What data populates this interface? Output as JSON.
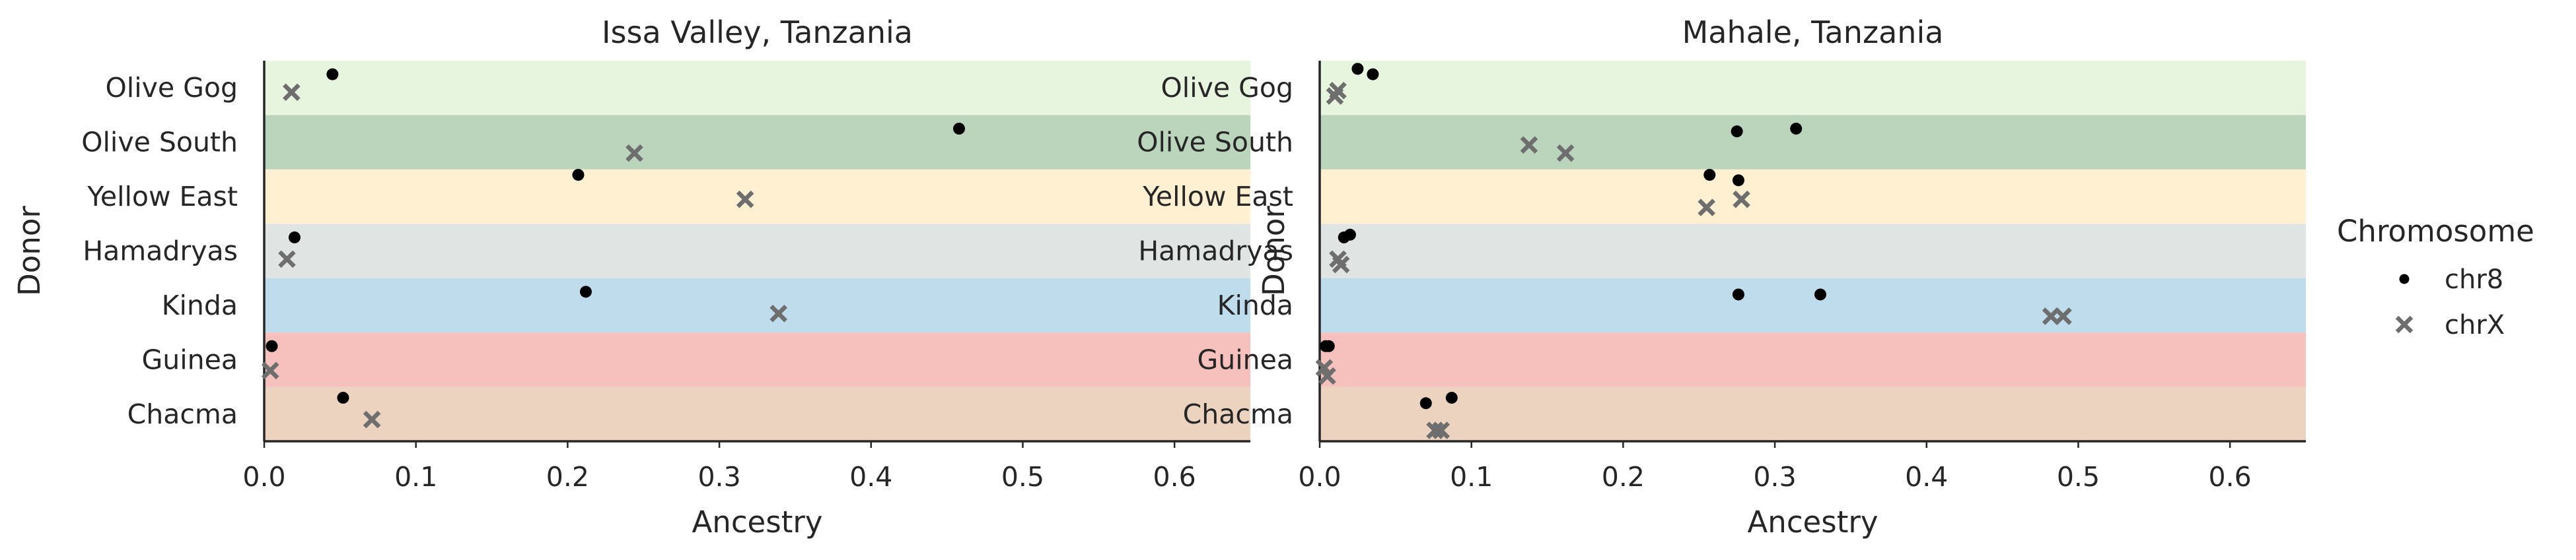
{
  "chart_data": [
    {
      "type": "scatter",
      "title": "Issa Valley, Tanzania",
      "xlabel": "Ancestry",
      "ylabel": "Donor",
      "xlim": [
        0,
        0.65
      ],
      "xticks": [
        "0.0",
        "0.1",
        "0.2",
        "0.3",
        "0.4",
        "0.5",
        "0.6"
      ],
      "categories": [
        "Olive Gog",
        "Olive South",
        "Yellow East",
        "Hamadryas",
        "Kinda",
        "Guinea",
        "Chacma"
      ],
      "band_colors": [
        "#e8f5de",
        "#bbd4bc",
        "#fff0d2",
        "#e0e5e4",
        "#bedcec",
        "#f6c1bc",
        "#ebd3c0"
      ],
      "series": [
        {
          "name": "chr8",
          "marker": "dot",
          "color": "#000000",
          "points": [
            {
              "donor": "Olive Gog",
              "x": 0.045,
              "offset": -0.25
            },
            {
              "donor": "Olive South",
              "x": 0.458,
              "offset": -0.25
            },
            {
              "donor": "Yellow East",
              "x": 0.207,
              "offset": -0.4
            },
            {
              "donor": "Hamadryas",
              "x": 0.02,
              "offset": -0.25
            },
            {
              "donor": "Kinda",
              "x": 0.212,
              "offset": -0.25
            },
            {
              "donor": "Guinea",
              "x": 0.005,
              "offset": -0.25
            },
            {
              "donor": "Chacma",
              "x": 0.052,
              "offset": -0.3
            }
          ]
        },
        {
          "name": "chrX",
          "marker": "x",
          "color": "#6e6e6e",
          "points": [
            {
              "donor": "Olive Gog",
              "x": 0.018,
              "offset": 0.08
            },
            {
              "donor": "Olive South",
              "x": 0.244,
              "offset": 0.2
            },
            {
              "donor": "Yellow East",
              "x": 0.317,
              "offset": 0.05
            },
            {
              "donor": "Hamadryas",
              "x": 0.015,
              "offset": 0.15
            },
            {
              "donor": "Kinda",
              "x": 0.339,
              "offset": 0.15
            },
            {
              "donor": "Guinea",
              "x": 0.004,
              "offset": 0.2
            },
            {
              "donor": "Chacma",
              "x": 0.071,
              "offset": 0.1
            }
          ]
        }
      ]
    },
    {
      "type": "scatter",
      "title": "Mahale, Tanzania",
      "xlabel": "Ancestry",
      "ylabel": "Donor",
      "xlim": [
        0,
        0.65
      ],
      "xticks": [
        "0.0",
        "0.1",
        "0.2",
        "0.3",
        "0.4",
        "0.5",
        "0.6"
      ],
      "categories": [
        "Olive Gog",
        "Olive South",
        "Yellow East",
        "Hamadryas",
        "Kinda",
        "Guinea",
        "Chacma"
      ],
      "band_colors": [
        "#e8f5de",
        "#bbd4bc",
        "#fff0d2",
        "#e0e5e4",
        "#bedcec",
        "#f6c1bc",
        "#ebd3c0"
      ],
      "series": [
        {
          "name": "chr8",
          "marker": "dot",
          "color": "#000000",
          "points": [
            {
              "donor": "Olive Gog",
              "x": 0.025,
              "offset": -0.35
            },
            {
              "donor": "Olive Gog",
              "x": 0.035,
              "offset": -0.25
            },
            {
              "donor": "Olive South",
              "x": 0.275,
              "offset": -0.2
            },
            {
              "donor": "Olive South",
              "x": 0.314,
              "offset": -0.25
            },
            {
              "donor": "Yellow East",
              "x": 0.257,
              "offset": -0.4
            },
            {
              "donor": "Yellow East",
              "x": 0.276,
              "offset": -0.3
            },
            {
              "donor": "Hamadryas",
              "x": 0.016,
              "offset": -0.25
            },
            {
              "donor": "Hamadryas",
              "x": 0.02,
              "offset": -0.3
            },
            {
              "donor": "Kinda",
              "x": 0.276,
              "offset": -0.2
            },
            {
              "donor": "Kinda",
              "x": 0.33,
              "offset": -0.2
            },
            {
              "donor": "Guinea",
              "x": 0.004,
              "offset": -0.25
            },
            {
              "donor": "Guinea",
              "x": 0.006,
              "offset": -0.25
            },
            {
              "donor": "Chacma",
              "x": 0.07,
              "offset": -0.2
            },
            {
              "donor": "Chacma",
              "x": 0.087,
              "offset": -0.3
            }
          ]
        },
        {
          "name": "chrX",
          "marker": "x",
          "color": "#6e6e6e",
          "points": [
            {
              "donor": "Olive Gog",
              "x": 0.01,
              "offset": 0.15
            },
            {
              "donor": "Olive Gog",
              "x": 0.012,
              "offset": 0.05
            },
            {
              "donor": "Olive South",
              "x": 0.138,
              "offset": 0.05
            },
            {
              "donor": "Olive South",
              "x": 0.162,
              "offset": 0.2
            },
            {
              "donor": "Yellow East",
              "x": 0.255,
              "offset": 0.2
            },
            {
              "donor": "Yellow East",
              "x": 0.278,
              "offset": 0.05
            },
            {
              "donor": "Hamadryas",
              "x": 0.012,
              "offset": 0.15
            },
            {
              "donor": "Hamadryas",
              "x": 0.014,
              "offset": 0.25
            },
            {
              "donor": "Kinda",
              "x": 0.482,
              "offset": 0.2
            },
            {
              "donor": "Kinda",
              "x": 0.49,
              "offset": 0.2
            },
            {
              "donor": "Guinea",
              "x": 0.003,
              "offset": 0.15
            },
            {
              "donor": "Guinea",
              "x": 0.005,
              "offset": 0.3
            },
            {
              "donor": "Chacma",
              "x": 0.076,
              "offset": 0.3
            },
            {
              "donor": "Chacma",
              "x": 0.08,
              "offset": 0.3
            }
          ]
        }
      ]
    }
  ],
  "legend": {
    "title": "Chromosome",
    "placement": "right",
    "items": [
      {
        "label": "chr8",
        "marker": "dot",
        "color": "#000000"
      },
      {
        "label": "chrX",
        "marker": "x",
        "color": "#6e6e6e"
      }
    ]
  }
}
